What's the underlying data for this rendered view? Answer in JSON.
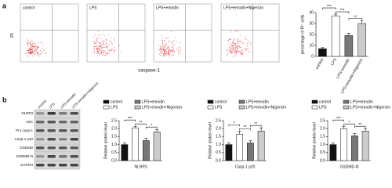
{
  "panel_labels": [
    "a",
    "b"
  ],
  "flow_cytometry": {
    "y_label": "PI",
    "x_label": "caspase-1",
    "plots": [
      "control",
      "LPS",
      "LPS+emodin",
      "LPS+emodin+Nigericin"
    ]
  },
  "western_blot": {
    "lanes": [
      "control",
      "LPS",
      "LPS+emodin",
      "LPS+emodin+Nigericin"
    ],
    "rows": [
      "NLRP3",
      "ASC",
      "Pro casp-1",
      "Casp-1 p20",
      "GSDMD",
      "GSDMD-N",
      "GAPDH"
    ]
  },
  "chart_data": [
    {
      "type": "bar",
      "y_label": "percentage of PI⁺ cells",
      "categories": [
        "control",
        "LPS",
        "LPS+emodin",
        "LPS+emodin+Nigericin"
      ],
      "values": [
        7,
        37,
        19,
        30
      ],
      "errors": [
        1,
        1.5,
        2,
        2.5
      ],
      "colors": [
        "#111111",
        "#ffffff",
        "#777777",
        "#cccccc"
      ],
      "ylim": [
        0,
        40
      ],
      "yticks": [
        0,
        10,
        20,
        30,
        40
      ],
      "significance": [
        {
          "pair": [
            0,
            1
          ],
          "label": "***"
        },
        {
          "pair": [
            1,
            2
          ],
          "label": "***"
        },
        {
          "pair": [
            2,
            3
          ],
          "label": "**"
        }
      ]
    },
    {
      "type": "bar",
      "y_label": "Relative protein level",
      "categories": [
        "NLRP3"
      ],
      "series": [
        {
          "name": "control",
          "color": "#111111",
          "values": [
            1.0
          ],
          "errors": [
            0.1
          ]
        },
        {
          "name": "LPS",
          "color": "#ffffff",
          "values": [
            2.05
          ],
          "errors": [
            0.1
          ]
        },
        {
          "name": "LPS+emodin",
          "color": "#777777",
          "values": [
            1.25
          ],
          "errors": [
            0.15
          ]
        },
        {
          "name": "LPS+emodin+Nigericin",
          "color": "#cccccc",
          "values": [
            1.8
          ],
          "errors": [
            0.15
          ]
        }
      ],
      "ylim": [
        0,
        2.5
      ],
      "yticks": [
        {
          "value": 0,
          "label": "0.0"
        },
        {
          "value": 0.5,
          "label": "0.5"
        },
        {
          "value": 1,
          "label": "1.0"
        },
        {
          "value": 1.5,
          "label": "1.5"
        },
        {
          "value": 2,
          "label": "2.0"
        },
        {
          "value": 2.5,
          "label": "2.5"
        }
      ],
      "significance": [
        {
          "pair": [
            0,
            1
          ],
          "label": "***"
        },
        {
          "pair": [
            1,
            2
          ],
          "label": "**"
        },
        {
          "pair": [
            2,
            3
          ],
          "label": "*"
        }
      ]
    },
    {
      "type": "bar",
      "y_label": "Relative protein level",
      "categories": [
        "Casp-1 p20"
      ],
      "series": [
        {
          "name": "control",
          "color": "#111111",
          "values": [
            1.0
          ],
          "errors": [
            0.1
          ]
        },
        {
          "name": "LPS",
          "color": "#ffffff",
          "values": [
            1.65
          ],
          "errors": [
            0.2
          ]
        },
        {
          "name": "LPS+emodin",
          "color": "#777777",
          "values": [
            1.1
          ],
          "errors": [
            0.15
          ]
        },
        {
          "name": "LPS+emodin+Nigericin",
          "color": "#cccccc",
          "values": [
            1.85
          ],
          "errors": [
            0.2
          ]
        }
      ],
      "ylim": [
        0,
        2.5
      ],
      "yticks": [
        {
          "value": 0,
          "label": "0.0"
        },
        {
          "value": 0.5,
          "label": "0.5"
        },
        {
          "value": 1,
          "label": "1.0"
        },
        {
          "value": 1.5,
          "label": "1.5"
        },
        {
          "value": 2,
          "label": "2.0"
        },
        {
          "value": 2.5,
          "label": "2.5"
        }
      ],
      "significance": [
        {
          "pair": [
            0,
            1
          ],
          "label": "*"
        },
        {
          "pair": [
            1,
            2
          ],
          "label": "**"
        },
        {
          "pair": [
            2,
            3
          ],
          "label": "**"
        }
      ]
    },
    {
      "type": "bar",
      "y_label": "Relative protein level",
      "categories": [
        "GSDMD-N"
      ],
      "series": [
        {
          "name": "control",
          "color": "#111111",
          "values": [
            1.0
          ],
          "errors": [
            0.1
          ]
        },
        {
          "name": "LPS",
          "color": "#ffffff",
          "values": [
            2.0
          ],
          "errors": [
            0.15
          ]
        },
        {
          "name": "LPS+emodin",
          "color": "#777777",
          "values": [
            1.55
          ],
          "errors": [
            0.15
          ]
        },
        {
          "name": "LPS+emodin+Nigericin",
          "color": "#cccccc",
          "values": [
            1.85
          ],
          "errors": [
            0.15
          ]
        }
      ],
      "ylim": [
        0,
        2.5
      ],
      "yticks": [
        {
          "value": 0,
          "label": "0.0"
        },
        {
          "value": 0.5,
          "label": "0.5"
        },
        {
          "value": 1,
          "label": "1.0"
        },
        {
          "value": 1.5,
          "label": "1.5"
        },
        {
          "value": 2,
          "label": "2.0"
        },
        {
          "value": 2.5,
          "label": "2.5"
        }
      ],
      "significance": [
        {
          "pair": [
            0,
            1
          ],
          "label": "***"
        },
        {
          "pair": [
            1,
            2
          ],
          "label": "*"
        },
        {
          "pair": [
            2,
            3
          ],
          "label": "**"
        }
      ]
    }
  ]
}
